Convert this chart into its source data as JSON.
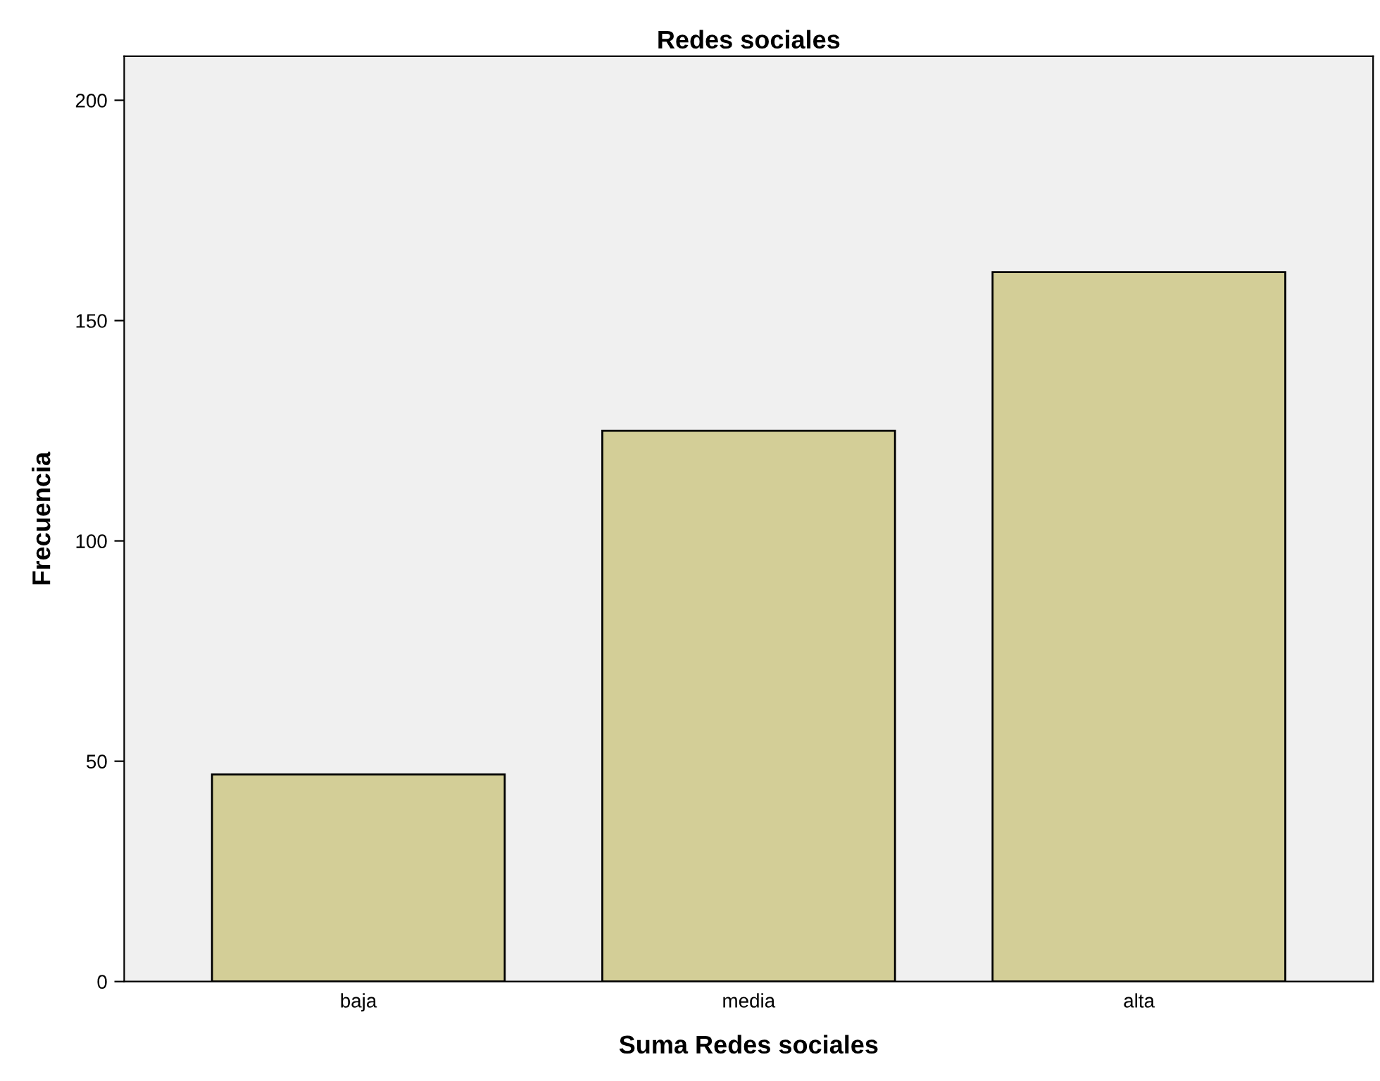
{
  "chart_data": {
    "type": "bar",
    "title": "Redes sociales",
    "xlabel": "Suma Redes sociales",
    "ylabel": "Frecuencia",
    "categories": [
      "baja",
      "media",
      "alta"
    ],
    "values": [
      47,
      125,
      161
    ],
    "color": "#d3ce97",
    "ylim": [
      0,
      210
    ],
    "yticks": [
      0,
      50,
      100,
      150,
      200
    ],
    "grid": false
  }
}
